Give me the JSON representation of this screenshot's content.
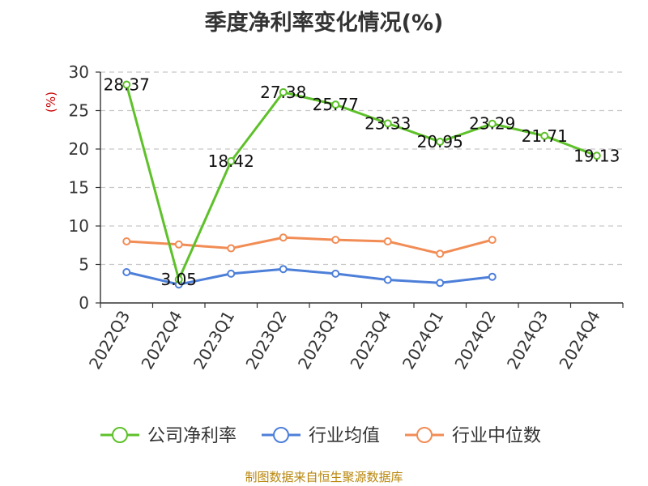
{
  "chart_data": {
    "type": "line",
    "title": "季度净利率变化情况(%)",
    "ylabel": "(%)",
    "xlabel": "",
    "ylim": [
      0,
      30
    ],
    "yticks": [
      0,
      5,
      10,
      15,
      20,
      25,
      30
    ],
    "grid": true,
    "legend_position": "bottom",
    "categories": [
      "2022Q3",
      "2022Q4",
      "2023Q1",
      "2023Q2",
      "2023Q3",
      "2023Q4",
      "2024Q1",
      "2024Q2",
      "2024Q3",
      "2024Q4"
    ],
    "series": [
      {
        "name": "公司净利率",
        "color": "#5ec12a",
        "values": [
          28.37,
          3.05,
          18.42,
          27.38,
          25.77,
          23.33,
          20.95,
          23.29,
          21.71,
          19.13
        ],
        "labels": [
          "28.37",
          "3.05",
          "18.42",
          "27.38",
          "25.77",
          "23.33",
          "20.95",
          "23.29",
          "21.71",
          "19.13"
        ]
      },
      {
        "name": "行业均值",
        "color": "#4d7fd9",
        "values": [
          4.0,
          2.4,
          3.8,
          4.4,
          3.8,
          3.0,
          2.6,
          3.4,
          null,
          null
        ]
      },
      {
        "name": "行业中位数",
        "color": "#f28c55",
        "values": [
          8.0,
          7.6,
          7.1,
          8.5,
          8.2,
          8.0,
          6.4,
          8.2,
          null,
          null
        ]
      }
    ]
  },
  "source_note": "制图数据来自恒生聚源数据库"
}
